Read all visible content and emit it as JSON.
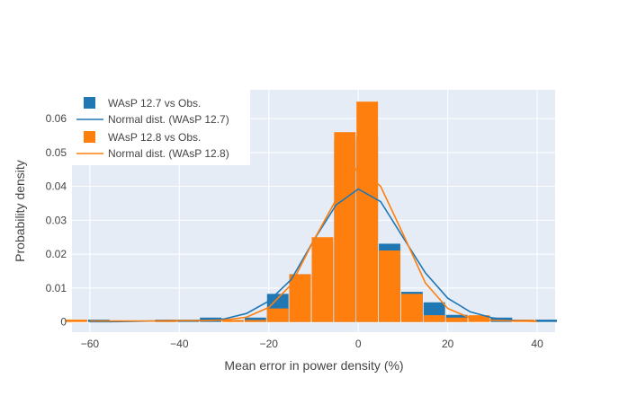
{
  "chart_data": {
    "type": "bar",
    "xlabel": "Mean error in power density (%)",
    "ylabel": "Probability density",
    "xlim": [
      -64,
      44
    ],
    "ylim": [
      -0.003,
      0.0685
    ],
    "x_ticks": [
      -60,
      -40,
      -20,
      0,
      20,
      40
    ],
    "y_ticks": [
      0,
      0.01,
      0.02,
      0.03,
      0.04,
      0.05,
      0.06
    ],
    "x_tick_labels": [
      "−60",
      "−40",
      "−20",
      "0",
      "20",
      "40"
    ],
    "y_tick_labels": [
      "0",
      "0.01",
      "0.02",
      "0.03",
      "0.04",
      "0.05",
      "0.06"
    ],
    "grid": true,
    "legend_position": "top-left",
    "bin_width": 5,
    "series": [
      {
        "name": "WAsP 12.7 vs Obs.",
        "kind": "histogram",
        "color": "#1f77b4",
        "bins": [
          {
            "x": -58,
            "y": 0.0007
          },
          {
            "x": -43,
            "y": 0.0007
          },
          {
            "x": -38,
            "y": 0.0007
          },
          {
            "x": -33,
            "y": 0.0013
          },
          {
            "x": -23,
            "y": 0.0013
          },
          {
            "x": -18,
            "y": 0.0083
          },
          {
            "x": -13,
            "y": 0.0141
          },
          {
            "x": -8,
            "y": 0.0236
          },
          {
            "x": -3,
            "y": 0.0536
          },
          {
            "x": 2,
            "y": 0.0549
          },
          {
            "x": 7,
            "y": 0.0231
          },
          {
            "x": 12,
            "y": 0.0089
          },
          {
            "x": 17,
            "y": 0.0058
          },
          {
            "x": 22,
            "y": 0.0021
          },
          {
            "x": 32,
            "y": 0.0013
          },
          {
            "x": 42,
            "y": 0.0007
          }
        ]
      },
      {
        "name": "Normal dist. (WAsP 12.7)",
        "kind": "line",
        "color": "#1f77b4",
        "x": [
          -60,
          -55,
          -50,
          -45,
          -40,
          -35,
          -30,
          -25,
          -20,
          -15,
          -10,
          -5,
          0,
          5,
          10,
          15,
          20,
          25,
          30,
          35,
          40
        ],
        "y": [
          0.0001,
          0.0001,
          0.0002,
          0.0003,
          0.0004,
          0.0005,
          0.0009,
          0.0025,
          0.0062,
          0.0125,
          0.024,
          0.0345,
          0.0392,
          0.0355,
          0.025,
          0.0145,
          0.007,
          0.003,
          0.0012,
          0.0004,
          0.0002
        ]
      },
      {
        "name": "WAsP 12.8 vs Obs.",
        "kind": "histogram",
        "color": "#ff7f0e",
        "bins": [
          {
            "x": -63,
            "y": 0.0007
          },
          {
            "x": -43,
            "y": 0.0006
          },
          {
            "x": -28,
            "y": 0.0006
          },
          {
            "x": -23,
            "y": 0.0006
          },
          {
            "x": -18,
            "y": 0.004
          },
          {
            "x": -13,
            "y": 0.0141
          },
          {
            "x": -8,
            "y": 0.025
          },
          {
            "x": -3,
            "y": 0.056
          },
          {
            "x": 2,
            "y": 0.065
          },
          {
            "x": 7,
            "y": 0.0211
          },
          {
            "x": 12,
            "y": 0.0083
          },
          {
            "x": 17,
            "y": 0.002
          },
          {
            "x": 22,
            "y": 0.0013
          },
          {
            "x": 27,
            "y": 0.002
          },
          {
            "x": 37,
            "y": 0.0007
          }
        ]
      },
      {
        "name": "Normal dist. (WAsP 12.8)",
        "kind": "line",
        "color": "#ff7f0e",
        "x": [
          -60,
          -55,
          -50,
          -45,
          -40,
          -35,
          -30,
          -25,
          -20,
          -15,
          -10,
          -5,
          0,
          5,
          10,
          15,
          20,
          25,
          30,
          35,
          40
        ],
        "y": [
          0.0003,
          0.0003,
          0.0003,
          0.0003,
          0.0004,
          0.0004,
          0.0006,
          0.0014,
          0.0043,
          0.011,
          0.024,
          0.036,
          0.046,
          0.04,
          0.026,
          0.0115,
          0.004,
          0.0012,
          0.0005,
          0.0003,
          0.0002
        ]
      }
    ]
  }
}
